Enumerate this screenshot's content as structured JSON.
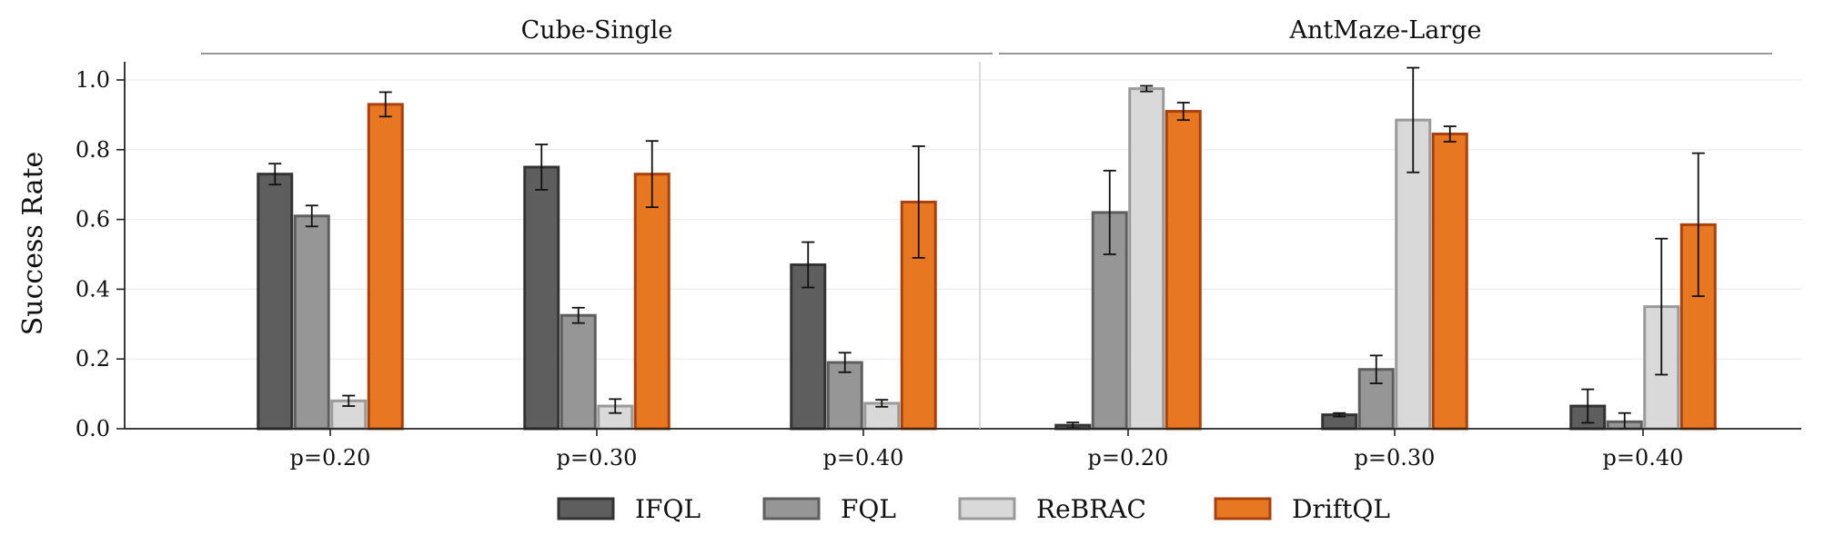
{
  "chart_data": {
    "type": "bar",
    "ylabel": "Success Rate",
    "ylim": [
      0,
      1.05
    ],
    "yticks": [
      0.0,
      0.2,
      0.4,
      0.6,
      0.8,
      1.0
    ],
    "ytick_labels": [
      "0.0",
      "0.2",
      "0.4",
      "0.6",
      "0.8",
      "1.0"
    ],
    "grid": "horizontal",
    "legend_position": "bottom",
    "panels": [
      {
        "title": "Cube-Single",
        "categories": [
          "p=0.20",
          "p=0.30",
          "p=0.40"
        ],
        "series": [
          {
            "name": "IFQL",
            "values": [
              0.73,
              0.75,
              0.47
            ],
            "errors": [
              0.03,
              0.065,
              0.065
            ]
          },
          {
            "name": "FQL",
            "values": [
              0.61,
              0.325,
              0.19
            ],
            "errors": [
              0.03,
              0.022,
              0.028
            ]
          },
          {
            "name": "ReBRAC",
            "values": [
              0.08,
              0.065,
              0.073
            ],
            "errors": [
              0.015,
              0.02,
              0.01
            ]
          },
          {
            "name": "DriftQL",
            "values": [
              0.93,
              0.73,
              0.65
            ],
            "errors": [
              0.035,
              0.095,
              0.16
            ]
          }
        ]
      },
      {
        "title": "AntMaze-Large",
        "categories": [
          "p=0.20",
          "p=0.30",
          "p=0.40"
        ],
        "series": [
          {
            "name": "IFQL",
            "values": [
              0.01,
              0.04,
              0.065
            ],
            "errors": [
              0.008,
              0.005,
              0.048
            ]
          },
          {
            "name": "FQL",
            "values": [
              0.62,
              0.17,
              0.02
            ],
            "errors": [
              0.12,
              0.04,
              0.025
            ]
          },
          {
            "name": "ReBRAC",
            "values": [
              0.975,
              0.885,
              0.35
            ],
            "errors": [
              0.008,
              0.15,
              0.195
            ]
          },
          {
            "name": "DriftQL",
            "values": [
              0.91,
              0.845,
              0.585
            ],
            "errors": [
              0.025,
              0.022,
              0.205
            ]
          }
        ]
      }
    ]
  },
  "colors": {
    "IFQL": {
      "fill": "#5e5e5e",
      "stroke": "#333333"
    },
    "FQL": {
      "fill": "#969696",
      "stroke": "#5e5e5e"
    },
    "ReBRAC": {
      "fill": "#d9d9d9",
      "stroke": "#9a9a9a"
    },
    "DriftQL": {
      "fill": "#e87722",
      "stroke": "#a9400d"
    }
  }
}
